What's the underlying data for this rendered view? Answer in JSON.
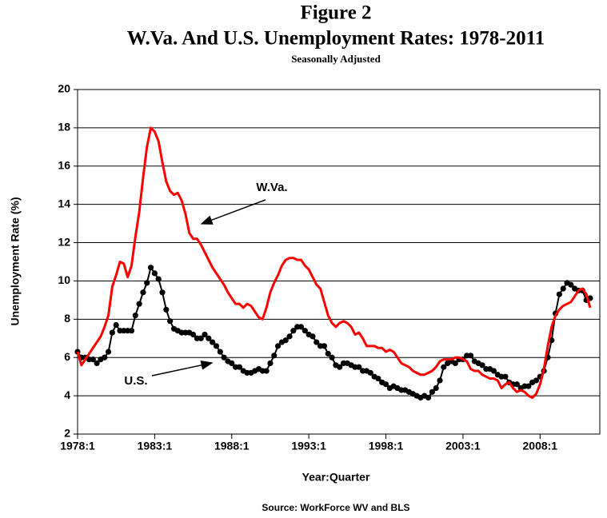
{
  "chart_data": {
    "type": "line",
    "title": "Figure 2",
    "subtitle": "W.Va. And U.S. Unemployment Rates: 1978-2011",
    "note": "Seasonally Adjusted",
    "x_label": "Year:Quarter",
    "y_label": "Unemployment Rate (%)",
    "source": "Source: WorkForce WV and BLS",
    "annotations": [
      "W.Va.",
      "U.S."
    ],
    "xlim": [
      1978,
      2011.875
    ],
    "xticks": [
      {
        "value": 1978,
        "label": "1978:1"
      },
      {
        "value": 1983,
        "label": "1983:1"
      },
      {
        "value": 1988,
        "label": "1988:1"
      },
      {
        "value": 1993,
        "label": "1993:1"
      },
      {
        "value": 1998,
        "label": "1998:1"
      },
      {
        "value": 2003,
        "label": "2003:1"
      },
      {
        "value": 2008,
        "label": "2008:1"
      }
    ],
    "ylim": [
      2,
      20
    ],
    "yticks": [
      2,
      4,
      6,
      8,
      10,
      12,
      14,
      16,
      18,
      20
    ],
    "grid": true,
    "x": [
      1978,
      1978.25,
      1978.5,
      1978.75,
      1979,
      1979.25,
      1979.5,
      1979.75,
      1980,
      1980.25,
      1980.5,
      1980.75,
      1981,
      1981.25,
      1981.5,
      1981.75,
      1982,
      1982.25,
      1982.5,
      1982.75,
      1983,
      1983.25,
      1983.5,
      1983.75,
      1984,
      1984.25,
      1984.5,
      1984.75,
      1985,
      1985.25,
      1985.5,
      1985.75,
      1986,
      1986.25,
      1986.5,
      1986.75,
      1987,
      1987.25,
      1987.5,
      1987.75,
      1988,
      1988.25,
      1988.5,
      1988.75,
      1989,
      1989.25,
      1989.5,
      1989.75,
      1990,
      1990.25,
      1990.5,
      1990.75,
      1991,
      1991.25,
      1991.5,
      1991.75,
      1992,
      1992.25,
      1992.5,
      1992.75,
      1993,
      1993.25,
      1993.5,
      1993.75,
      1994,
      1994.25,
      1994.5,
      1994.75,
      1995,
      1995.25,
      1995.5,
      1995.75,
      1996,
      1996.25,
      1996.5,
      1996.75,
      1997,
      1997.25,
      1997.5,
      1997.75,
      1998,
      1998.25,
      1998.5,
      1998.75,
      1999,
      1999.25,
      1999.5,
      1999.75,
      2000,
      2000.25,
      2000.5,
      2000.75,
      2001,
      2001.25,
      2001.5,
      2001.75,
      2002,
      2002.25,
      2002.5,
      2002.75,
      2003,
      2003.25,
      2003.5,
      2003.75,
      2004,
      2004.25,
      2004.5,
      2004.75,
      2005,
      2005.25,
      2005.5,
      2005.75,
      2006,
      2006.25,
      2006.5,
      2006.75,
      2007,
      2007.25,
      2007.5,
      2007.75,
      2008,
      2008.25,
      2008.5,
      2008.75,
      2009,
      2009.25,
      2009.5,
      2009.75,
      2010,
      2010.25,
      2010.5,
      2010.75,
      2011,
      2011.25
    ],
    "series": [
      {
        "name": "U.S.",
        "color": "#000000",
        "marker": true,
        "values": [
          6.3,
          6.0,
          6.0,
          5.9,
          5.9,
          5.7,
          5.9,
          6.0,
          6.3,
          7.3,
          7.7,
          7.4,
          7.4,
          7.4,
          7.4,
          8.2,
          8.8,
          9.4,
          9.9,
          10.7,
          10.4,
          10.1,
          9.4,
          8.5,
          7.9,
          7.5,
          7.4,
          7.3,
          7.3,
          7.3,
          7.2,
          7.0,
          7.0,
          7.2,
          7.0,
          6.8,
          6.6,
          6.3,
          6.0,
          5.8,
          5.7,
          5.5,
          5.5,
          5.3,
          5.2,
          5.2,
          5.3,
          5.4,
          5.3,
          5.3,
          5.7,
          6.1,
          6.6,
          6.8,
          6.9,
          7.1,
          7.4,
          7.6,
          7.6,
          7.4,
          7.2,
          7.1,
          6.8,
          6.6,
          6.6,
          6.2,
          6.0,
          5.6,
          5.5,
          5.7,
          5.7,
          5.6,
          5.5,
          5.5,
          5.3,
          5.3,
          5.2,
          5.0,
          4.9,
          4.7,
          4.6,
          4.4,
          4.5,
          4.4,
          4.3,
          4.3,
          4.2,
          4.1,
          4.0,
          3.9,
          4.0,
          3.9,
          4.2,
          4.4,
          4.8,
          5.5,
          5.7,
          5.8,
          5.7,
          5.9,
          5.9,
          6.1,
          6.1,
          5.8,
          5.7,
          5.6,
          5.4,
          5.4,
          5.3,
          5.1,
          5.0,
          5.0,
          4.7,
          4.6,
          4.6,
          4.4,
          4.5,
          4.5,
          4.7,
          4.8,
          5.0,
          5.3,
          6.0,
          6.9,
          8.3,
          9.3,
          9.6,
          9.9,
          9.8,
          9.6,
          9.5,
          9.5,
          9.0,
          9.1
        ]
      },
      {
        "name": "W.Va.",
        "color": "#ff0000",
        "marker": false,
        "values": [
          6.3,
          5.6,
          5.9,
          6.2,
          6.5,
          6.8,
          7.1,
          7.6,
          8.2,
          9.7,
          10.3,
          11.0,
          10.9,
          10.2,
          10.8,
          12.3,
          13.6,
          15.4,
          17.0,
          18.0,
          17.8,
          17.3,
          16.2,
          15.2,
          14.7,
          14.5,
          14.6,
          14.2,
          13.5,
          12.5,
          12.2,
          12.2,
          11.9,
          11.5,
          11.1,
          10.7,
          10.4,
          10.1,
          9.8,
          9.4,
          9.1,
          8.8,
          8.8,
          8.6,
          8.8,
          8.7,
          8.4,
          8.1,
          8.0,
          8.6,
          9.4,
          9.9,
          10.3,
          10.8,
          11.1,
          11.2,
          11.2,
          11.1,
          11.1,
          10.8,
          10.6,
          10.2,
          9.8,
          9.6,
          8.9,
          8.2,
          7.8,
          7.6,
          7.8,
          7.9,
          7.8,
          7.6,
          7.2,
          7.3,
          7.0,
          6.6,
          6.6,
          6.6,
          6.5,
          6.5,
          6.3,
          6.4,
          6.3,
          6.0,
          5.7,
          5.6,
          5.5,
          5.3,
          5.2,
          5.1,
          5.1,
          5.2,
          5.3,
          5.5,
          5.8,
          5.9,
          5.9,
          5.9,
          6.0,
          6.0,
          5.9,
          5.8,
          5.4,
          5.3,
          5.3,
          5.1,
          5.0,
          4.9,
          4.9,
          4.8,
          4.4,
          4.6,
          4.7,
          4.4,
          4.2,
          4.3,
          4.2,
          4.0,
          3.9,
          4.1,
          4.6,
          5.4,
          6.6,
          7.6,
          8.2,
          8.5,
          8.7,
          8.8,
          8.9,
          9.2,
          9.5,
          9.6,
          9.3,
          8.6
        ]
      }
    ]
  }
}
